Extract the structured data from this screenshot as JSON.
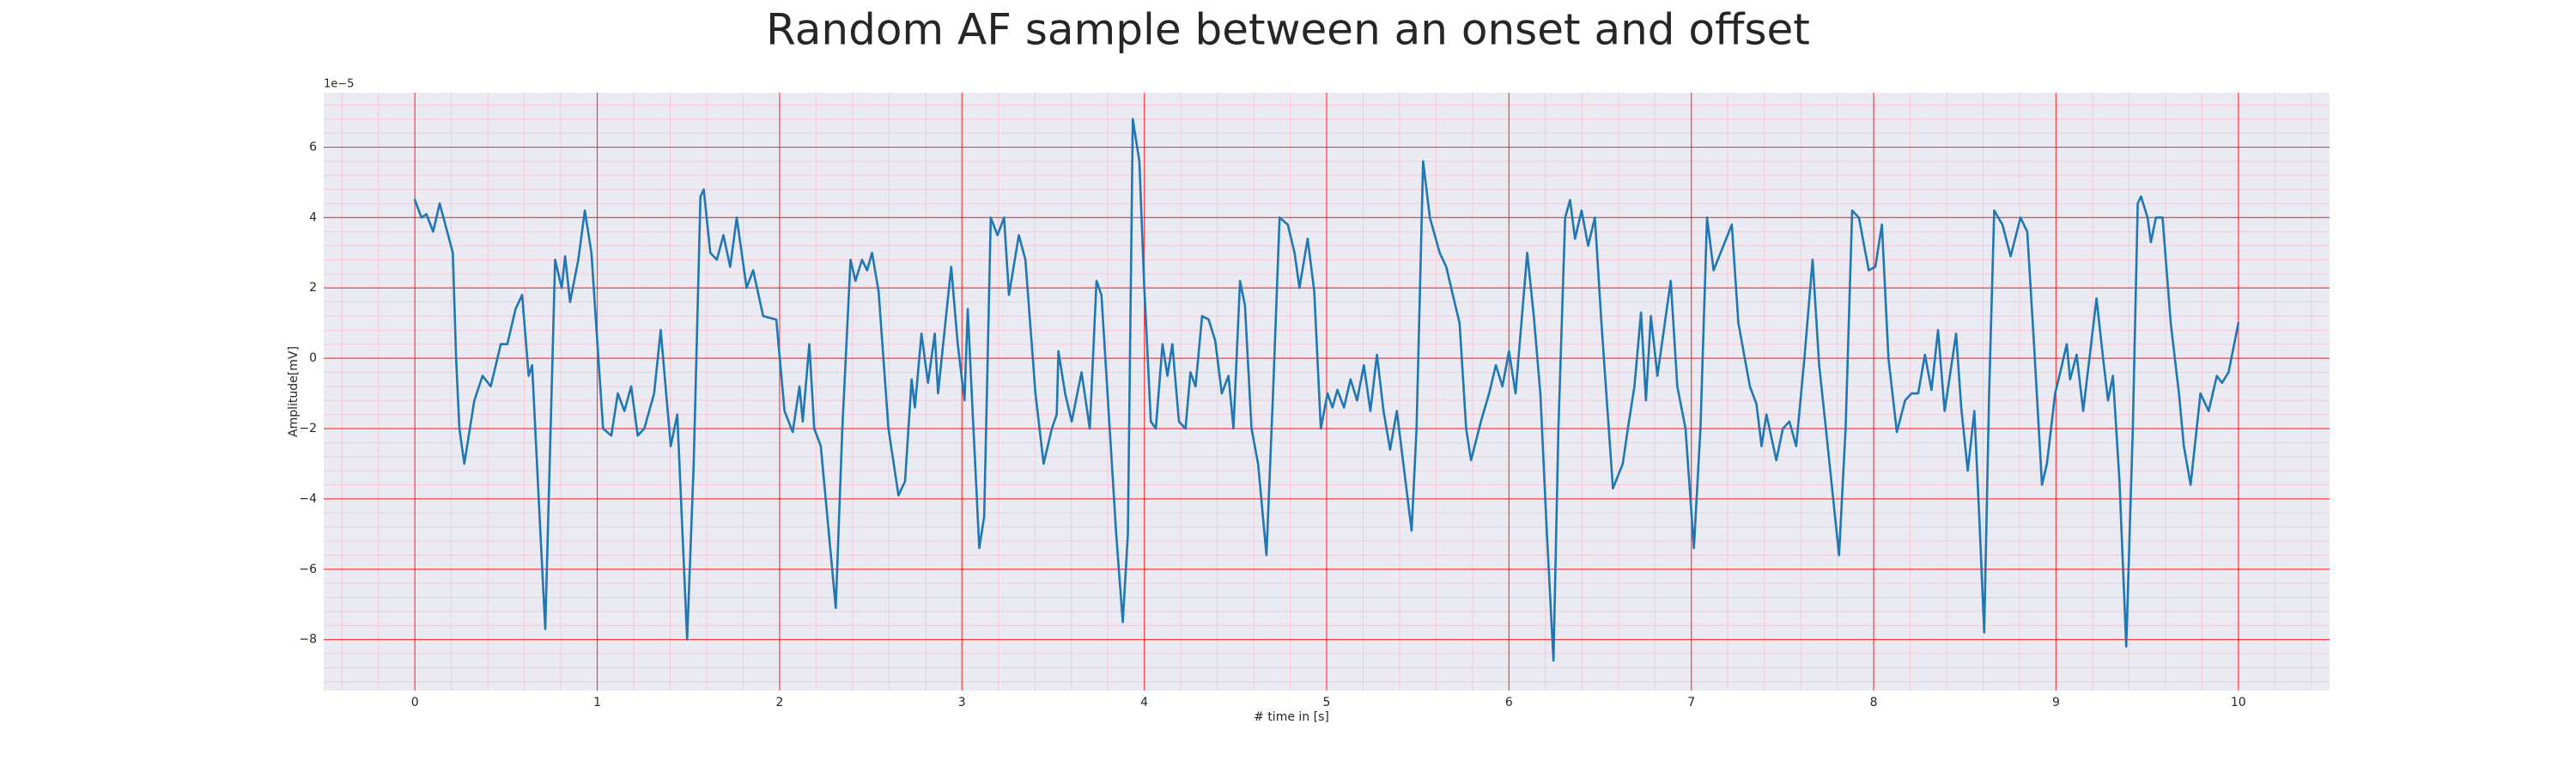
{
  "chart_data": {
    "type": "line",
    "title": "Random AF sample between an onset and offset",
    "x_label": "# time in [s]",
    "y_label": "Amplitude[mV]",
    "y_offset_label": "1e−5",
    "color": "#1f77b4",
    "background": "#eaeaf2",
    "grid": true,
    "grid_color": "#ff0000",
    "minor_grid": true,
    "minor_grid_color": "#ffb6c1",
    "xlim": [
      -0.5,
      10.5
    ],
    "xticks": [
      0,
      1,
      2,
      3,
      4,
      5,
      6,
      7,
      8,
      9,
      10
    ],
    "ylim": [
      -9.45,
      7.55
    ],
    "yticks": [
      {
        "value": -8,
        "label": "−8"
      },
      {
        "value": -6,
        "label": "−6"
      },
      {
        "value": -4,
        "label": "−4"
      },
      {
        "value": -2,
        "label": "−2"
      },
      0,
      2,
      4,
      6
    ],
    "x": [
      0,
      0.036,
      0.063,
      0.1,
      0.136,
      0.172,
      0.208,
      0.226,
      0.244,
      0.271,
      0.326,
      0.371,
      0.416,
      0.471,
      0.507,
      0.552,
      0.588,
      0.624,
      0.643,
      0.679,
      0.715,
      0.769,
      0.805,
      0.824,
      0.851,
      0.896,
      0.932,
      0.968,
      1.032,
      1.077,
      1.113,
      1.149,
      1.186,
      1.222,
      1.258,
      1.312,
      1.348,
      1.403,
      1.439,
      1.493,
      1.529,
      1.566,
      1.584,
      1.62,
      1.656,
      1.692,
      1.729,
      1.765,
      1.819,
      1.855,
      1.91,
      1.982,
      2.027,
      2.072,
      2.109,
      2.127,
      2.163,
      2.19,
      2.226,
      2.308,
      2.344,
      2.389,
      2.416,
      2.452,
      2.48,
      2.507,
      2.543,
      2.597,
      2.652,
      2.688,
      2.724,
      2.742,
      2.778,
      2.814,
      2.851,
      2.869,
      2.941,
      2.977,
      3.014,
      3.032,
      3.05,
      3.095,
      3.122,
      3.158,
      3.195,
      3.231,
      3.258,
      3.312,
      3.348,
      3.403,
      3.448,
      3.493,
      3.52,
      3.529,
      3.566,
      3.602,
      3.656,
      3.701,
      3.738,
      3.765,
      3.846,
      3.882,
      3.91,
      3.937,
      3.973,
      4.0,
      4.036,
      4.063,
      4.1,
      4.127,
      4.154,
      4.19,
      4.226,
      4.253,
      4.281,
      4.317,
      4.353,
      4.389,
      4.425,
      4.462,
      4.489,
      4.525,
      4.552,
      4.588,
      4.624,
      4.67,
      4.706,
      4.742,
      4.787,
      4.824,
      4.851,
      4.896,
      4.932,
      4.968,
      5.005,
      5.032,
      5.059,
      5.095,
      5.131,
      5.167,
      5.204,
      5.24,
      5.276,
      5.312,
      5.348,
      5.385,
      5.466,
      5.493,
      5.529,
      5.566,
      5.62,
      5.656,
      5.692,
      5.729,
      5.765,
      5.792,
      5.846,
      5.891,
      5.928,
      5.964,
      6.0,
      6.036,
      6.1,
      6.136,
      6.172,
      6.208,
      6.244,
      6.271,
      6.308,
      6.335,
      6.362,
      6.398,
      6.434,
      6.471,
      6.507,
      6.57,
      6.624,
      6.652,
      6.688,
      6.724,
      6.751,
      6.778,
      6.814,
      6.887,
      6.923,
      6.968,
      7.014,
      7.05,
      7.086,
      7.122,
      7.176,
      7.222,
      7.258,
      7.321,
      7.357,
      7.385,
      7.412,
      7.466,
      7.502,
      7.538,
      7.575,
      7.62,
      7.665,
      7.701,
      7.738,
      7.81,
      7.846,
      7.882,
      7.919,
      7.973,
      8.009,
      8.045,
      8.081,
      8.127,
      8.172,
      8.208,
      8.244,
      8.281,
      8.317,
      8.353,
      8.389,
      8.452,
      8.48,
      8.516,
      8.552,
      8.579,
      8.606,
      8.633,
      8.661,
      8.706,
      8.751,
      8.805,
      8.842,
      8.878,
      8.923,
      8.95,
      8.995,
      9.023,
      9.059,
      9.077,
      9.113,
      9.149,
      9.222,
      9.258,
      9.285,
      9.312,
      9.348,
      9.385,
      9.421,
      9.448,
      9.466,
      9.502,
      9.52,
      9.548,
      9.584,
      9.629,
      9.674,
      9.701,
      9.738,
      9.792,
      9.837,
      9.882,
      9.91,
      9.946,
      10.0
    ],
    "values": [
      4.5,
      4.0,
      4.1,
      3.6,
      4.4,
      3.7,
      3.0,
      0.0,
      -2.0,
      -3.0,
      -1.2,
      -0.5,
      -0.8,
      0.4,
      0.4,
      1.4,
      1.8,
      -0.5,
      -0.2,
      -4.0,
      -7.7,
      2.8,
      2.0,
      2.9,
      1.6,
      2.8,
      4.2,
      3.0,
      -2.0,
      -2.2,
      -1.0,
      -1.5,
      -0.8,
      -2.2,
      -2.0,
      -1.0,
      0.8,
      -2.5,
      -1.6,
      -8.0,
      -3.0,
      4.6,
      4.8,
      3.0,
      2.8,
      3.5,
      2.6,
      4.0,
      2.0,
      2.5,
      1.2,
      1.1,
      -1.5,
      -2.1,
      -0.8,
      -1.8,
      0.4,
      -2.0,
      -2.5,
      -7.1,
      -2.0,
      2.8,
      2.2,
      2.8,
      2.5,
      3.0,
      1.9,
      -2.0,
      -3.9,
      -3.5,
      -0.6,
      -1.4,
      0.7,
      -0.7,
      0.7,
      -1.0,
      2.6,
      0.4,
      -1.2,
      1.4,
      -0.6,
      -5.4,
      -4.5,
      4.0,
      3.5,
      4.0,
      1.8,
      3.5,
      2.8,
      -1.0,
      -3.0,
      -2.0,
      -1.6,
      0.2,
      -1.0,
      -1.8,
      -0.4,
      -2.0,
      2.2,
      1.8,
      -5.0,
      -7.5,
      -5.0,
      6.8,
      5.6,
      2.0,
      -1.8,
      -2.0,
      0.4,
      -0.5,
      0.4,
      -1.8,
      -2.0,
      -0.4,
      -0.8,
      1.2,
      1.1,
      0.5,
      -1.0,
      -0.5,
      -2.0,
      2.2,
      1.5,
      -2.0,
      -3.0,
      -5.6,
      -1.0,
      4.0,
      3.8,
      3.0,
      2.0,
      3.4,
      1.9,
      -2.0,
      -1.0,
      -1.4,
      -0.9,
      -1.4,
      -0.6,
      -1.2,
      -0.2,
      -1.5,
      0.1,
      -1.5,
      -2.6,
      -1.5,
      -4.9,
      -2.0,
      5.6,
      4.0,
      3.0,
      2.6,
      1.8,
      1.0,
      -2.0,
      -2.9,
      -1.8,
      -1.0,
      -0.2,
      -0.8,
      0.2,
      -1.0,
      3.0,
      1.2,
      -1.0,
      -5.0,
      -8.6,
      -2.0,
      4.0,
      4.5,
      3.4,
      4.2,
      3.2,
      4.0,
      1.0,
      -3.7,
      -3.0,
      -2.0,
      -0.8,
      1.3,
      -1.2,
      1.2,
      -0.5,
      2.2,
      -0.8,
      -2.0,
      -5.4,
      -2.0,
      4.0,
      2.5,
      3.2,
      3.8,
      1.0,
      -0.8,
      -1.3,
      -2.5,
      -1.6,
      -2.9,
      -2.0,
      -1.8,
      -2.5,
      0.0,
      2.8,
      -0.2,
      -2.0,
      -5.6,
      -2.0,
      4.2,
      4.0,
      2.5,
      2.6,
      3.8,
      0.0,
      -2.1,
      -1.2,
      -1.0,
      -1.0,
      0.1,
      -0.9,
      0.8,
      -1.5,
      0.7,
      -1.4,
      -3.2,
      -1.5,
      -4.5,
      -7.8,
      -1.0,
      4.2,
      3.8,
      2.9,
      4.0,
      3.6,
      0.5,
      -3.6,
      -3.0,
      -1.0,
      -0.4,
      0.4,
      -0.6,
      0.1,
      -1.5,
      1.7,
      0.0,
      -1.2,
      -0.5,
      -3.5,
      -8.2,
      -2.0,
      4.4,
      4.6,
      4.0,
      3.3,
      4.0,
      4.0,
      1.0,
      -1.0,
      -2.5,
      -3.6,
      -1.0,
      -1.5,
      -0.5,
      -0.7,
      -0.4,
      1.0
    ]
  }
}
